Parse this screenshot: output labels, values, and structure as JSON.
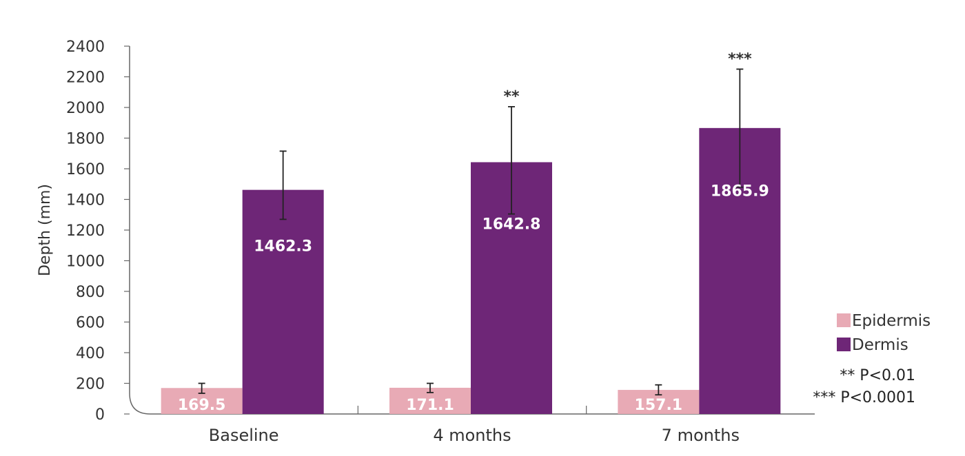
{
  "chart_data": {
    "type": "bar",
    "ylabel": "Depth (mm)",
    "ylim": [
      0,
      2400
    ],
    "ytick_step": 200,
    "categories": [
      "Baseline",
      "4 months",
      "7 months"
    ],
    "series": [
      {
        "name": "Epidermis",
        "color": "#e8aab5",
        "values": [
          169.5,
          171.1,
          157.1
        ],
        "labels": [
          "169.5",
          "171.1",
          "157.1"
        ],
        "error_low": [
          135,
          140,
          125
        ],
        "error_high": [
          200,
          200,
          190
        ]
      },
      {
        "name": "Dermis",
        "color": "#6e2677",
        "values": [
          1462.3,
          1642.8,
          1865.9
        ],
        "labels": [
          "1462.3",
          "1642.8",
          "1865.9"
        ],
        "error_low": [
          1270,
          1305,
          1480
        ],
        "error_high": [
          1715,
          2005,
          2250
        ]
      }
    ],
    "significance": [
      "",
      "**",
      "***"
    ],
    "legend_position": "right",
    "notes": [
      "** P<0.01",
      "*** P<0.0001"
    ],
    "grid": false
  }
}
